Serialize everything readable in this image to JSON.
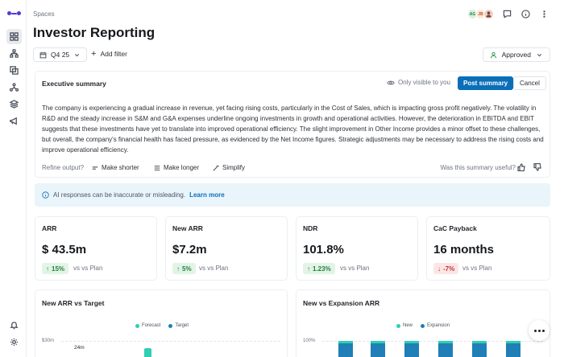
{
  "breadcrumb": "Spaces",
  "page_title": "Investor Reporting",
  "header": {
    "avatars": [
      "AG",
      "JB",
      ""
    ]
  },
  "filters": {
    "period": "Q4 25",
    "add_filter": "Add filter",
    "status": "Approved"
  },
  "summary": {
    "title": "Executive summary",
    "visibility": "Only visible to you",
    "post_label": "Post summary",
    "cancel_label": "Cancel",
    "text": "The company is experiencing a gradual increase in revenue, yet facing rising costs, particularly in the Cost of Sales, which is impacting gross profit negatively. The volatility in R&D and the steady increase in S&M and G&A expenses underline ongoing investments in growth and operational activities. However, the deterioration in EBITDA and EBIT suggests that these investments have yet to translate into improved operational efficiency. The slight improvement in Other Income provides a minor offset to these challenges, but overall, the company's financial health has faced pressure, as evidenced by the Net Income figures. Strategic adjustments may be necessary to address the rising costs and improve operational efficiency.",
    "refine_label": "Refine output?",
    "make_shorter": "Make shorter",
    "make_longer": "Make longer",
    "simplify": "Simplify",
    "useful_question": "Was this summary useful?"
  },
  "ai_banner": {
    "text": "AI responses can be inaccurate or misleading.",
    "link": "Learn more"
  },
  "kpis": [
    {
      "label": "ARR",
      "value": "$ 43.5m",
      "delta": "15%",
      "direction": "up",
      "vs": "vs vs Plan"
    },
    {
      "label": "New ARR",
      "value": "$7.2m",
      "delta": "5%",
      "direction": "up",
      "vs": "vs vs Plan"
    },
    {
      "label": "NDR",
      "value": "101.8%",
      "delta": "1.23%",
      "direction": "up",
      "vs": "vs vs Plan"
    },
    {
      "label": "CaC Payback",
      "value": "16 months",
      "delta": "-7%",
      "direction": "down",
      "vs": "vs vs Plan"
    }
  ],
  "charts": {
    "left": {
      "title": "New ARR vs Target",
      "legend": [
        "Forecast",
        "Target"
      ],
      "y_tick": "$30m",
      "data_label": "24m",
      "colors": {
        "forecast": "#2ecfb3",
        "target": "#1f7fb6"
      }
    },
    "right": {
      "title": "New vs Expansion ARR",
      "legend": [
        "New",
        "Expansion"
      ],
      "y_tick": "100%",
      "colors": {
        "new": "#2ecfb3",
        "expansion": "#1f7fb6"
      }
    }
  },
  "colors": {
    "accent": "#0b6fb8",
    "brand": "#4b3bd6",
    "success": "#23803f",
    "danger": "#c23434"
  }
}
